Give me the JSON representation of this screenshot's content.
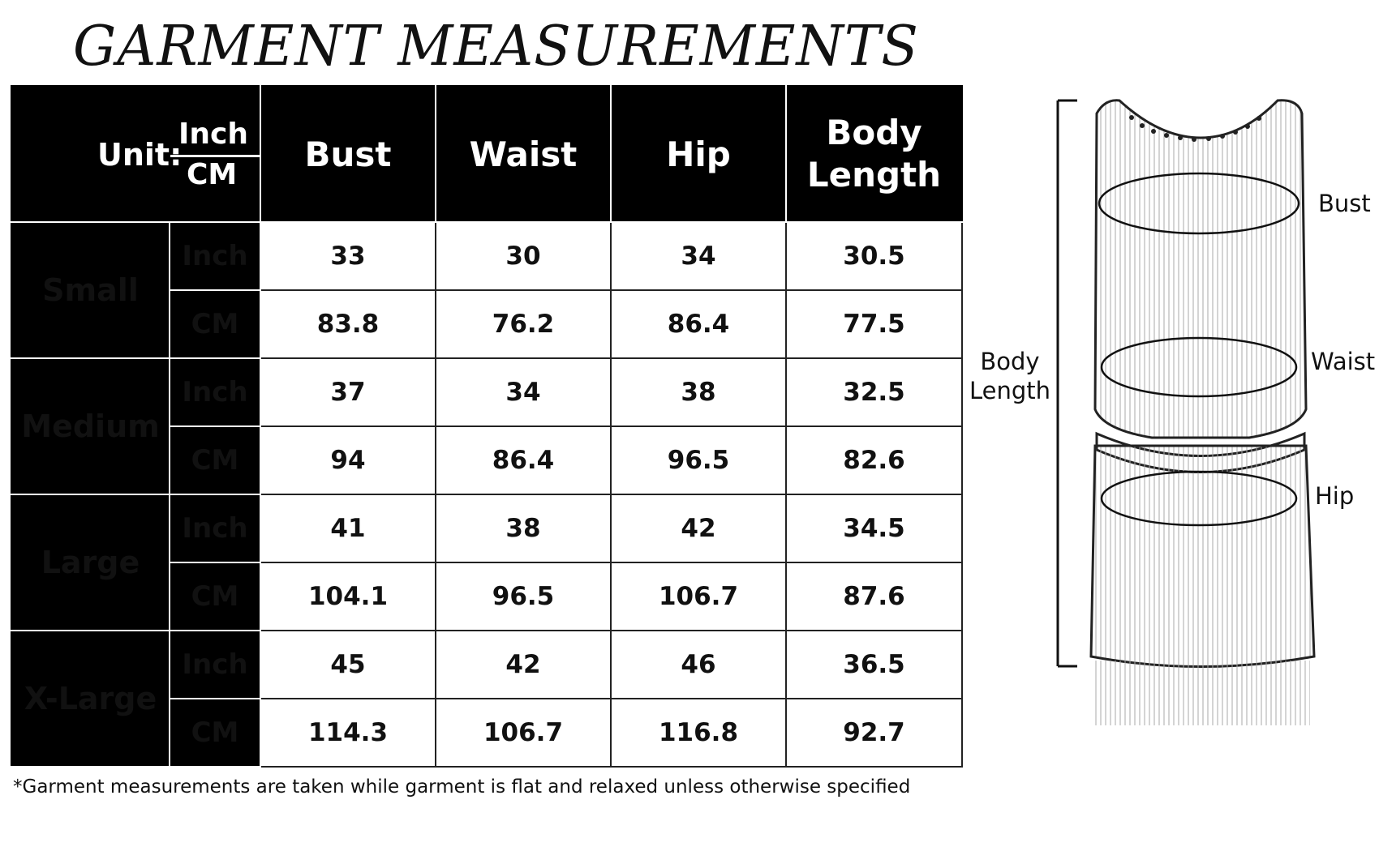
{
  "title": "GARMENT MEASUREMENTS",
  "table": {
    "unit_label": "Unit:",
    "unit_inch": "Inch",
    "unit_cm": "CM",
    "columns": [
      "Bust",
      "Waist",
      "Hip",
      "Body Length"
    ],
    "sizes": [
      {
        "name": "Small",
        "inch_label": "Inch",
        "cm_label": "CM",
        "inch": [
          "33",
          "30",
          "34",
          "30.5"
        ],
        "cm": [
          "83.8",
          "76.2",
          "86.4",
          "77.5"
        ]
      },
      {
        "name": "Medium",
        "inch_label": "Inch",
        "cm_label": "CM",
        "inch": [
          "37",
          "34",
          "38",
          "32.5"
        ],
        "cm": [
          "94",
          "86.4",
          "96.5",
          "82.6"
        ]
      },
      {
        "name": "Large",
        "inch_label": "Inch",
        "cm_label": "CM",
        "inch": [
          "41",
          "38",
          "42",
          "34.5"
        ],
        "cm": [
          "104.1",
          "96.5",
          "106.7",
          "87.6"
        ]
      },
      {
        "name": "X-Large",
        "inch_label": "Inch",
        "cm_label": "CM",
        "inch": [
          "45",
          "42",
          "46",
          "36.5"
        ],
        "cm": [
          "114.3",
          "106.7",
          "116.8",
          "92.7"
        ]
      }
    ]
  },
  "footnote": "*Garment measurements are taken while garment is flat and relaxed unless otherwise specified",
  "figure": {
    "labels": {
      "bust": "Bust",
      "waist": "Waist",
      "hip": "Hip",
      "body_length": "Body Length"
    }
  }
}
